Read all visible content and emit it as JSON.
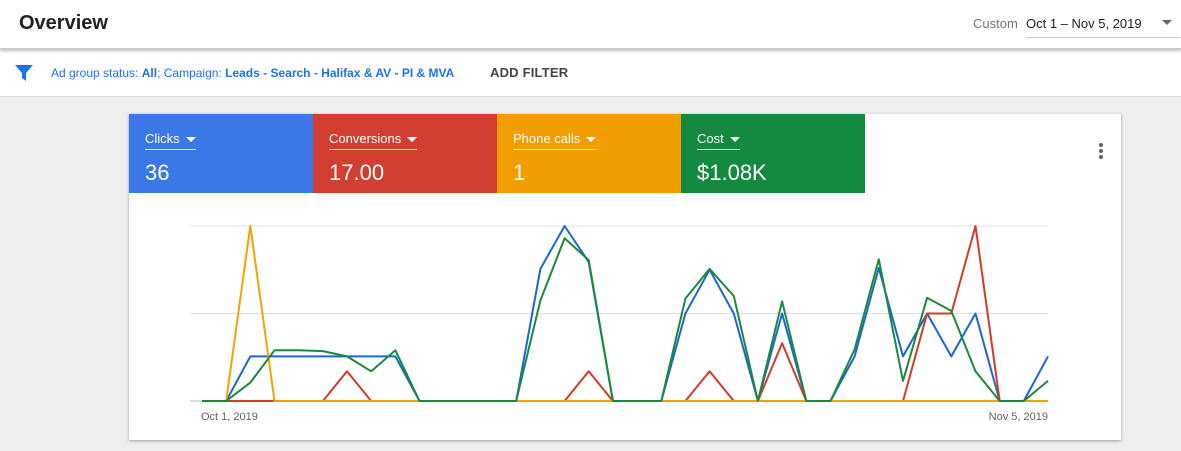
{
  "header": {
    "title": "Overview"
  },
  "date_range": {
    "label": "Custom",
    "value": "Oct 1 – Nov 5, 2019"
  },
  "filter": {
    "parts": [
      "Ad group status: ",
      "All",
      "; Campaign: ",
      "Leads - Search - Halifax & AV - PI & MVA"
    ],
    "add": "ADD FILTER"
  },
  "scorecards": [
    {
      "value": "36"
    },
    {
      "value": "17.00"
    },
    {
      "value": "1"
    },
    {
      "value": "$1.08K"
    }
  ],
  "chart_data": {
    "type": "line",
    "categories": [
      "Oct 1, 2019",
      null,
      null,
      null,
      null,
      null,
      null,
      null,
      null,
      null,
      null,
      null,
      null,
      null,
      null,
      null,
      null,
      null,
      null,
      null,
      null,
      null,
      null,
      null,
      null,
      null,
      null,
      null,
      null,
      null,
      null,
      null,
      null,
      null,
      null,
      "Nov 5, 2019"
    ],
    "ylim": [
      0,
      2
    ],
    "yticks": [
      0,
      1,
      2
    ],
    "grid": true,
    "series": [
      {
        "name": "Clicks",
        "color": "#1a67d2",
        "card_color": "#3b78e7",
        "values": [
          0,
          0,
          0.51,
          0.51,
          0.51,
          0.51,
          0.51,
          0.51,
          0.51,
          0,
          0,
          0,
          0,
          0,
          1.51,
          2,
          1.59,
          0,
          0,
          0,
          1.0,
          1.5,
          1.0,
          0,
          1.0,
          0,
          0,
          0.51,
          1.52,
          0.51,
          1.0,
          0.51,
          1.0,
          0,
          0,
          0.51
        ]
      },
      {
        "name": "Conversions",
        "color": "#d23a2a",
        "card_color": "#d23f31",
        "values": [
          0,
          0,
          0,
          0,
          0,
          0,
          0.34,
          0,
          0,
          0,
          0,
          0,
          0,
          0,
          0,
          0,
          0.34,
          0,
          0,
          0,
          0,
          0.34,
          0,
          0,
          0.66,
          0,
          0,
          0,
          0,
          0,
          1.0,
          1.0,
          2.0,
          0,
          0,
          0
        ]
      },
      {
        "name": "Phone calls",
        "color": "#f4a300",
        "card_color": "#f29d00",
        "values": [
          0,
          0,
          2,
          0,
          0,
          0,
          0,
          0,
          0,
          0,
          0,
          0,
          0,
          0,
          0,
          0,
          0,
          0,
          0,
          0,
          0,
          0,
          0,
          0,
          0,
          0,
          0,
          0,
          0,
          0,
          0,
          0,
          0,
          0,
          0,
          0
        ]
      },
      {
        "name": "Cost",
        "color": "#1a8a3a",
        "card_color": "#138a40",
        "values": [
          0,
          0,
          0.21,
          0.58,
          0.58,
          0.57,
          0.51,
          0.34,
          0.58,
          0,
          0,
          0,
          0,
          0,
          1.15,
          1.86,
          1.61,
          0,
          0,
          0,
          1.17,
          1.51,
          1.2,
          0,
          1.14,
          0,
          0,
          0.59,
          1.62,
          0.23,
          1.18,
          1.03,
          0.34,
          0,
          0,
          0.23
        ]
      }
    ]
  }
}
